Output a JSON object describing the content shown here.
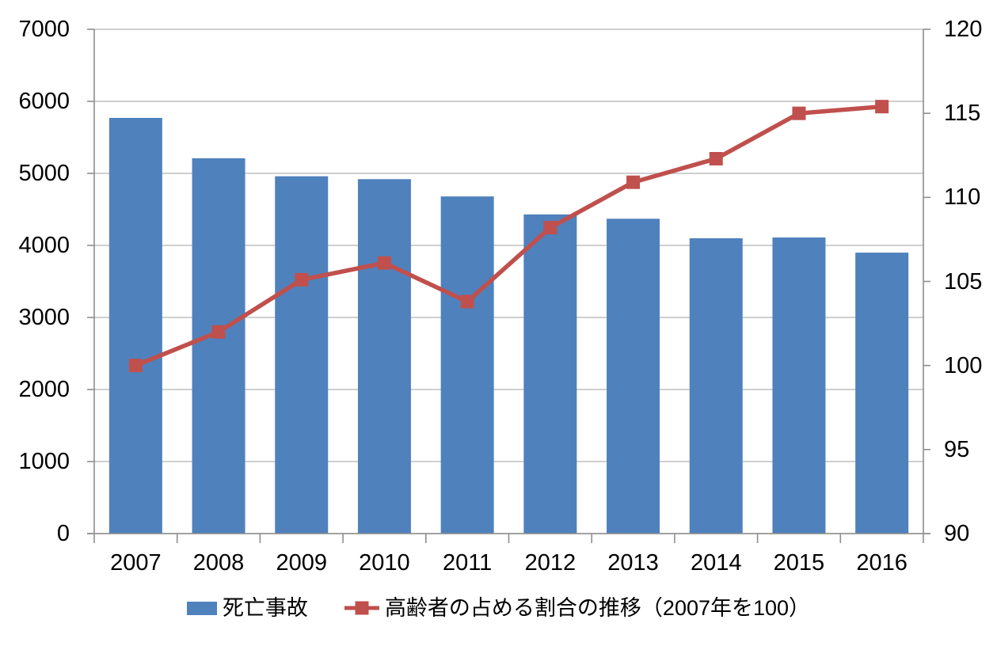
{
  "chart_data": {
    "type": "combo-bar-line",
    "title": "",
    "categories": [
      "2007",
      "2008",
      "2009",
      "2010",
      "2011",
      "2012",
      "2013",
      "2014",
      "2015",
      "2016"
    ],
    "series": [
      {
        "name": "死亡事故",
        "type": "bar",
        "axis": "left",
        "color": "#4F81BD",
        "values": [
          5770,
          5210,
          4960,
          4920,
          4680,
          4430,
          4370,
          4100,
          4110,
          3900
        ]
      },
      {
        "name": "高齢者の占める割合の推移（2007年を100）",
        "type": "line",
        "axis": "right",
        "color": "#C0504D",
        "marker": "square",
        "values": [
          100,
          102,
          105.1,
          106.1,
          103.8,
          108.2,
          110.9,
          112.3,
          115,
          115.4
        ]
      }
    ],
    "left_axis": {
      "min": 0,
      "max": 7000,
      "step": 1000,
      "tick_labels": [
        "0",
        "1000",
        "2000",
        "3000",
        "4000",
        "5000",
        "6000",
        "7000"
      ]
    },
    "right_axis": {
      "min": 90,
      "max": 120,
      "step": 5,
      "tick_labels": [
        "90",
        "95",
        "100",
        "105",
        "110",
        "115",
        "120"
      ]
    },
    "grid": true,
    "legend_position": "bottom",
    "colors": {
      "bar": "#4F81BD",
      "line": "#C0504D",
      "gridline": "#bfbfbf",
      "axis": "#8e8e8e",
      "text": "#000000",
      "background": "#ffffff"
    }
  }
}
